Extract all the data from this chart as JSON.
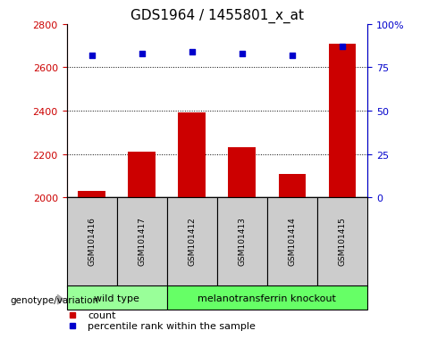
{
  "title": "GDS1964 / 1455801_x_at",
  "samples": [
    "GSM101416",
    "GSM101417",
    "GSM101412",
    "GSM101413",
    "GSM101414",
    "GSM101415"
  ],
  "counts": [
    2030,
    2210,
    2390,
    2230,
    2110,
    2710
  ],
  "percentiles": [
    82,
    83,
    84,
    83,
    82,
    87
  ],
  "ylim_left": [
    2000,
    2800
  ],
  "ylim_right": [
    0,
    100
  ],
  "yticks_left": [
    2000,
    2200,
    2400,
    2600,
    2800
  ],
  "yticks_right": [
    0,
    25,
    50,
    75,
    100
  ],
  "bar_color": "#cc0000",
  "dot_color": "#0000cc",
  "bg_color_samples": "#cccccc",
  "groups": [
    {
      "label": "wild type",
      "indices": [
        0,
        1
      ],
      "color": "#99ff99"
    },
    {
      "label": "melanotransferrin knockout",
      "indices": [
        2,
        3,
        4,
        5
      ],
      "color": "#66ff66"
    }
  ],
  "group_label": "genotype/variation",
  "legend_count": "count",
  "legend_percentile": "percentile rank within the sample",
  "grid_color": "black",
  "left_axis_color": "#cc0000",
  "right_axis_color": "#0000cc",
  "title_fontsize": 11,
  "tick_fontsize": 8,
  "sample_fontsize": 6.5,
  "group_fontsize": 8,
  "legend_fontsize": 8
}
